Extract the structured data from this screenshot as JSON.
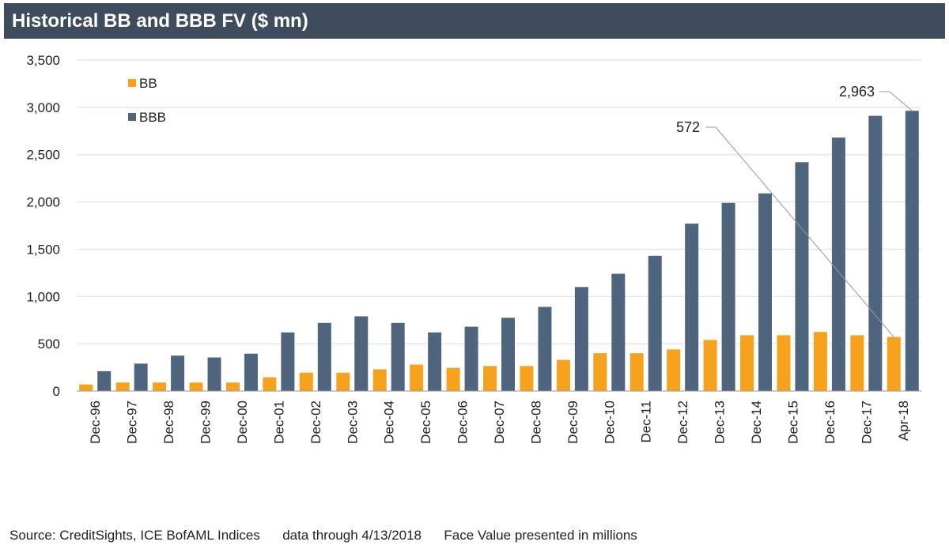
{
  "colors": {
    "bb": "#f7a21d",
    "bbb": "#4e657d",
    "title_bar": "#3f4c5e"
  },
  "chart_data": {
    "type": "bar",
    "title": "Historical BB and BBB FV ($ mn)",
    "categories": [
      "Dec-96",
      "Dec-97",
      "Dec-98",
      "Dec-99",
      "Dec-00",
      "Dec-01",
      "Dec-02",
      "Dec-03",
      "Dec-04",
      "Dec-05",
      "Dec-06",
      "Dec-07",
      "Dec-08",
      "Dec-09",
      "Dec-10",
      "Dec-11",
      "Dec-12",
      "Dec-13",
      "Dec-14",
      "Dec-15",
      "Dec-16",
      "Dec-17",
      "Apr-18"
    ],
    "series": [
      {
        "name": "BB",
        "values": [
          70,
          90,
          90,
          90,
          90,
          145,
          195,
          195,
          230,
          280,
          245,
          265,
          265,
          330,
          400,
          400,
          440,
          540,
          590,
          590,
          625,
          590,
          572
        ]
      },
      {
        "name": "BBB",
        "values": [
          210,
          290,
          375,
          355,
          395,
          620,
          720,
          790,
          720,
          620,
          680,
          775,
          890,
          1100,
          1240,
          1430,
          1770,
          1990,
          2090,
          2420,
          2680,
          2910,
          2963
        ]
      }
    ],
    "ylim": [
      0,
      3500
    ],
    "yticks": [
      0,
      500,
      1000,
      1500,
      2000,
      2500,
      3000,
      3500
    ],
    "ytick_labels": [
      "0",
      "500",
      "1,000",
      "1,500",
      "2,000",
      "2,500",
      "3,000",
      "3,500"
    ],
    "grid": true,
    "legend": "top-left",
    "annotations": [
      {
        "text": "572",
        "series": "BB",
        "category": "Apr-18"
      },
      {
        "text": "2,963",
        "series": "BBB",
        "category": "Apr-18"
      }
    ]
  },
  "footer": {
    "source": "Source: CreditSights, ICE BofAML Indices",
    "data_through": "data through 4/13/2018",
    "note": "Face Value presented in millions"
  }
}
